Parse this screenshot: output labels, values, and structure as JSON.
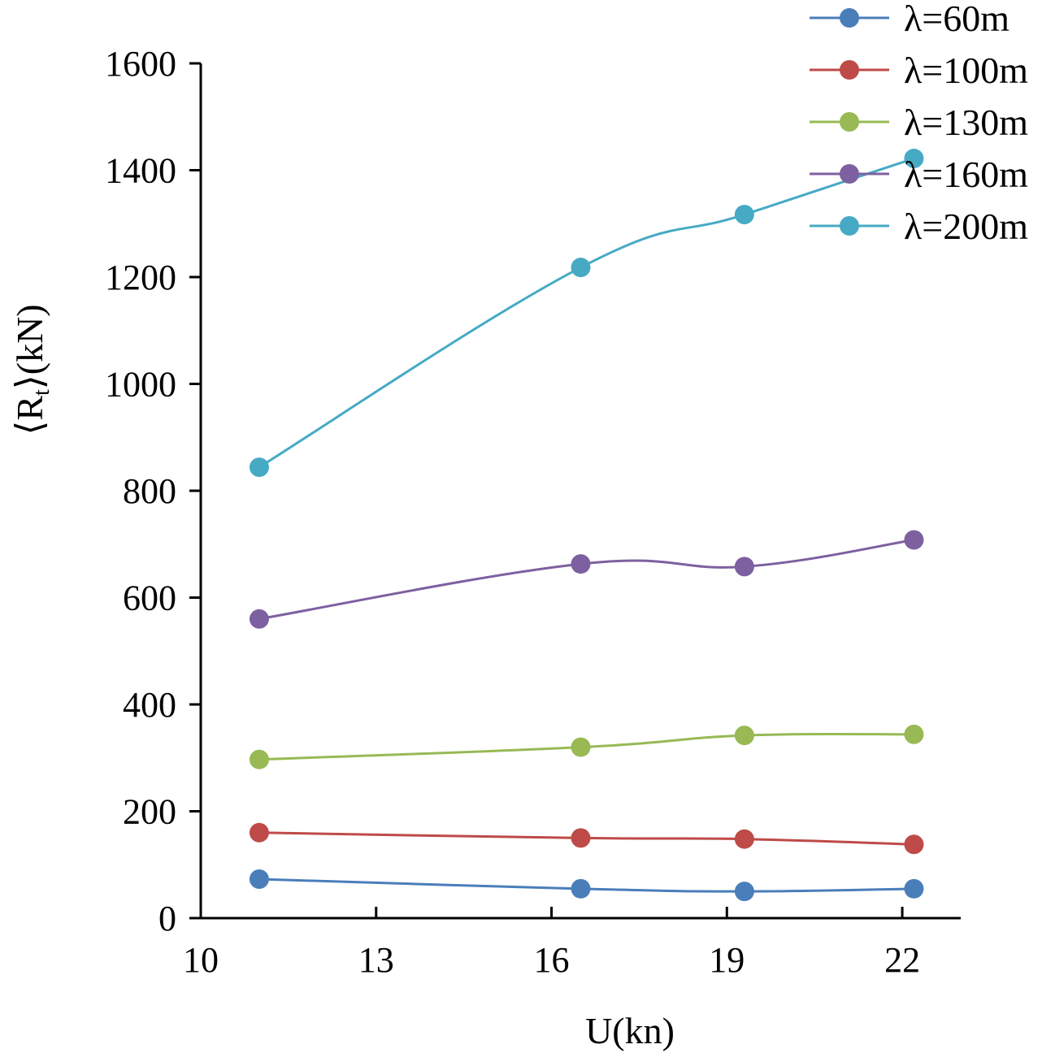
{
  "chart_data": {
    "type": "line",
    "title": "",
    "xlabel": "U(kn)",
    "ylabel": {
      "lb": "⟨",
      "main": "R",
      "sub": "t",
      "rb": "⟩",
      "unit": "(kN)"
    },
    "xlim": [
      10,
      23
    ],
    "ylim": [
      0,
      1600
    ],
    "xticks": [
      10,
      13,
      16,
      19,
      22
    ],
    "yticks": [
      0,
      200,
      400,
      600,
      800,
      1000,
      1200,
      1400,
      1600
    ],
    "xtick_labels": [
      "10",
      "13",
      "16",
      "19",
      "22"
    ],
    "ytick_labels": [
      "0",
      "200",
      "400",
      "600",
      "800",
      "1000",
      "1200",
      "1400",
      "1600"
    ],
    "grid": false,
    "legend_position": "top-right",
    "x": [
      11,
      16.5,
      19.3,
      22.2
    ],
    "series": [
      {
        "name": "λ=60m",
        "color": "#4a7ebb",
        "values": [
          73,
          55,
          50,
          55
        ]
      },
      {
        "name": "λ=100m",
        "color": "#be4b48",
        "values": [
          160,
          150,
          148,
          138
        ]
      },
      {
        "name": "λ=130m",
        "color": "#98b954",
        "values": [
          297,
          320,
          342,
          344
        ]
      },
      {
        "name": "λ=160m",
        "color": "#7d60a0",
        "values": [
          560,
          663,
          658,
          708
        ]
      },
      {
        "name": "λ=200m",
        "color": "#46aac5",
        "values": [
          844,
          1218,
          1317,
          1422
        ]
      }
    ]
  }
}
